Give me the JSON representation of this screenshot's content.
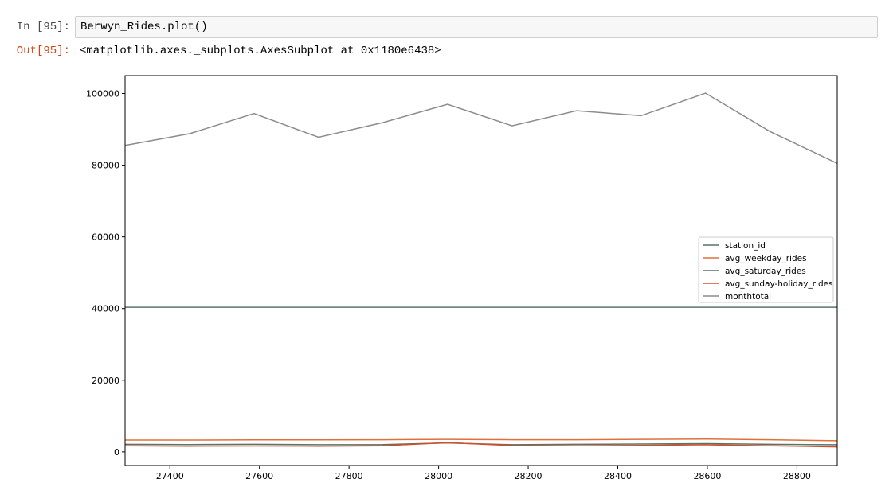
{
  "notebook": {
    "in_prompt": "In [95]:",
    "in_code": "Berwyn_Rides.plot()",
    "out_prompt": "Out[95]:",
    "out_text": "<matplotlib.axes._subplots.AxesSubplot at 0x1180e6438>"
  },
  "chart_data": {
    "type": "line",
    "title": "",
    "xlabel": "",
    "ylabel": "",
    "xlim": [
      27300,
      28890
    ],
    "ylim": [
      -3800,
      105000
    ],
    "xticks": [
      27400,
      27600,
      27800,
      28000,
      28200,
      28400,
      28600,
      28800
    ],
    "yticks": [
      0,
      20000,
      40000,
      60000,
      80000,
      100000
    ],
    "grid": false,
    "legend_position": "center-right",
    "x": [
      27300,
      27444,
      27588,
      27732,
      27876,
      28020,
      28164,
      28308,
      28452,
      28596,
      28740,
      28890
    ],
    "series": [
      {
        "name": "station_id",
        "color": "#5a7468",
        "values": [
          40360,
          40360,
          40360,
          40360,
          40360,
          40360,
          40360,
          40360,
          40360,
          40360,
          40360,
          40360
        ]
      },
      {
        "name": "avg_weekday_rides",
        "color": "#e0703a",
        "values": [
          3300,
          3300,
          3350,
          3350,
          3400,
          3500,
          3400,
          3400,
          3500,
          3600,
          3400,
          3100
        ]
      },
      {
        "name": "avg_saturday_rides",
        "color": "#5a7468",
        "values": [
          2100,
          2050,
          2100,
          2000,
          2050,
          2500,
          2000,
          2100,
          2200,
          2300,
          2100,
          2000
        ]
      },
      {
        "name": "avg_sunday-holiday_rides",
        "color": "#d24e2a",
        "values": [
          1700,
          1600,
          1650,
          1600,
          1700,
          2600,
          1750,
          1700,
          1800,
          2000,
          1700,
          1400
        ]
      },
      {
        "name": "monthtotal",
        "color": "#8c8c8c",
        "values": [
          85500,
          88800,
          94400,
          87800,
          91900,
          97000,
          91000,
          95200,
          93800,
          100100,
          89400,
          80500
        ]
      }
    ]
  }
}
